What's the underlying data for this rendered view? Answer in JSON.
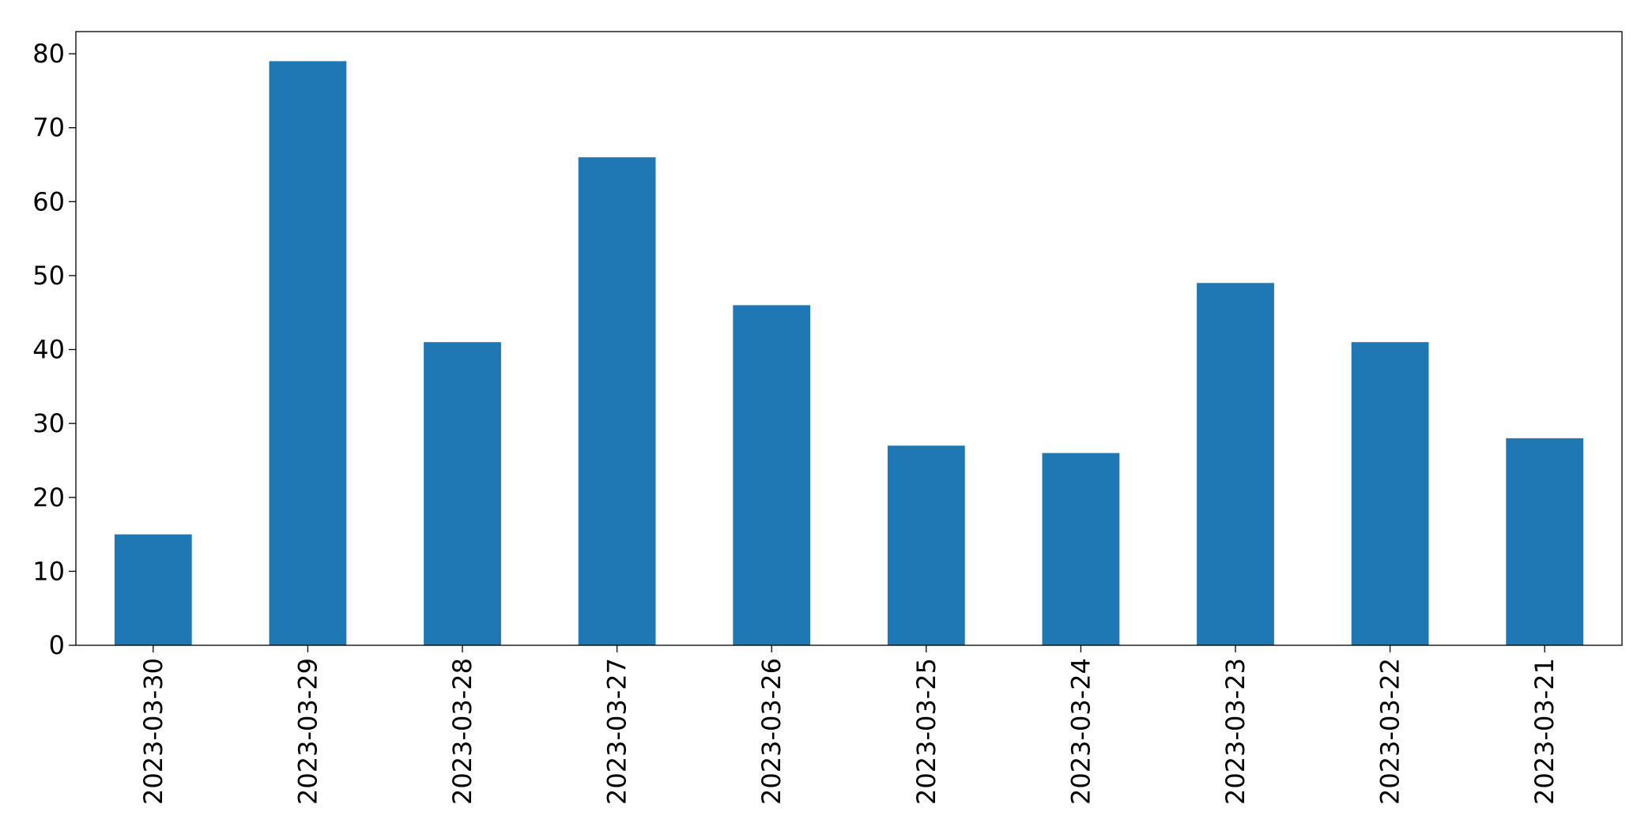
{
  "chart_data": {
    "type": "bar",
    "categories": [
      "2023-03-30",
      "2023-03-29",
      "2023-03-28",
      "2023-03-27",
      "2023-03-26",
      "2023-03-25",
      "2023-03-24",
      "2023-03-23",
      "2023-03-22",
      "2023-03-21"
    ],
    "values": [
      15,
      79,
      41,
      66,
      46,
      27,
      26,
      49,
      41,
      28
    ],
    "color": "#1f77b4",
    "ylim": [
      0,
      83
    ],
    "yticks": [
      0,
      10,
      20,
      30,
      40,
      50,
      60,
      70,
      80
    ],
    "grid": false
  }
}
